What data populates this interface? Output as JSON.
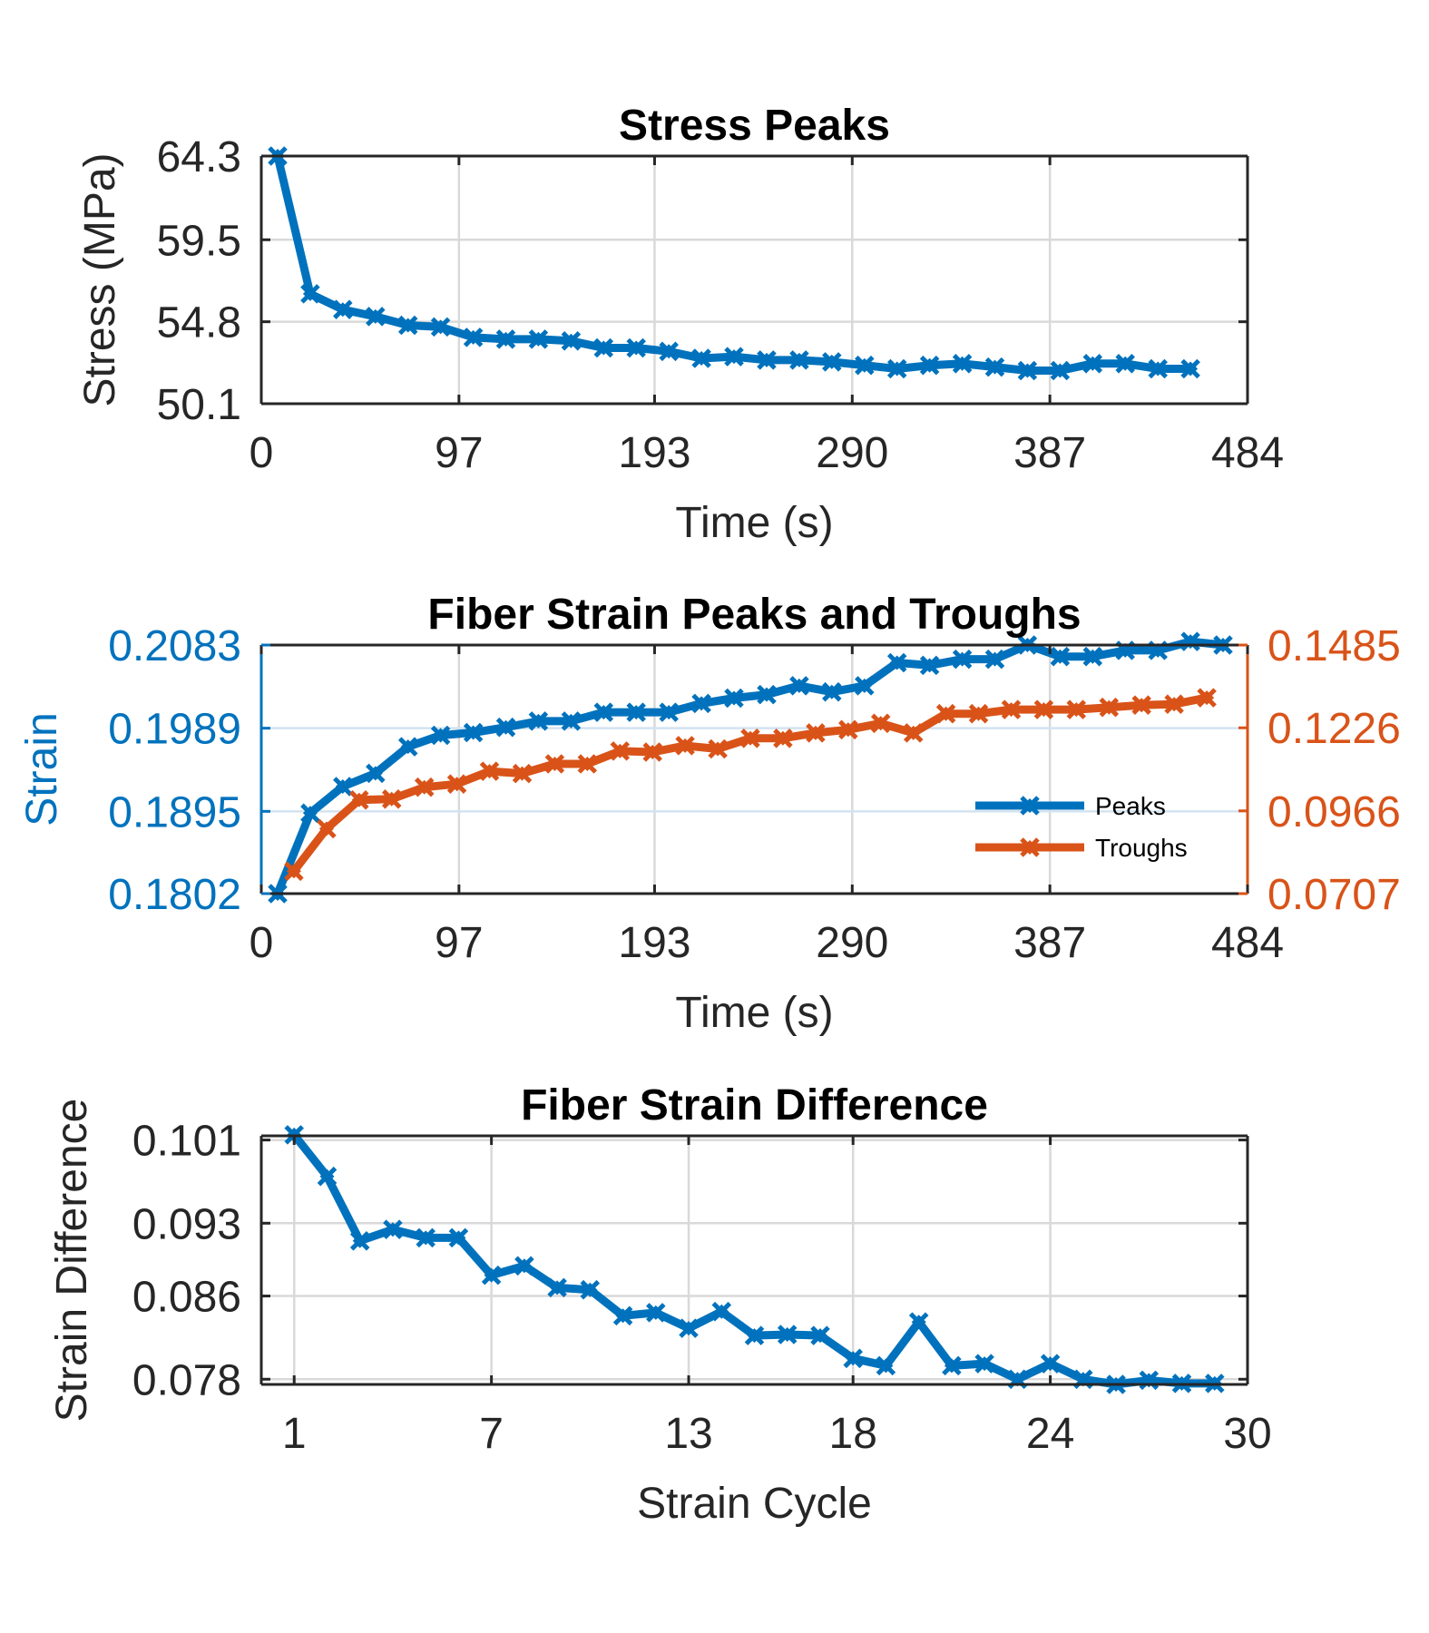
{
  "chart_data": [
    {
      "type": "line",
      "title": "Stress Peaks",
      "xlabel": "Time (s)",
      "ylabel": "Stress (MPa)",
      "xlim": [
        0,
        484
      ],
      "ylim": [
        50.1,
        64.3
      ],
      "xticks": [
        "0",
        "97",
        "193",
        "290",
        "387",
        "484"
      ],
      "yticks": [
        "50.1",
        "54.8",
        "59.5",
        "64.3"
      ],
      "grid": true,
      "series": [
        {
          "color": "#0072BD",
          "marker": "x-diamond",
          "x": [
            8,
            24,
            40,
            56,
            72,
            88,
            104,
            120,
            136,
            152,
            168,
            184,
            200,
            216,
            232,
            248,
            264,
            280,
            296,
            312,
            328,
            344,
            360,
            376,
            392,
            408,
            424,
            440,
            456
          ],
          "y": [
            64.3,
            56.4,
            55.5,
            55.1,
            54.6,
            54.5,
            53.9,
            53.8,
            53.8,
            53.7,
            53.3,
            53.3,
            53.1,
            52.7,
            52.8,
            52.6,
            52.6,
            52.5,
            52.3,
            52.1,
            52.3,
            52.4,
            52.2,
            52.0,
            52.0,
            52.4,
            52.4,
            52.1,
            52.1
          ]
        }
      ]
    },
    {
      "type": "line",
      "title": "Fiber Strain Peaks and Troughs",
      "xlabel": "Time (s)",
      "ylabel": "Strain",
      "xlim": [
        0,
        484
      ],
      "ylim": [
        0.1802,
        0.2083
      ],
      "y2lim": [
        0.0707,
        0.1485
      ],
      "xticks": [
        "0",
        "97",
        "193",
        "290",
        "387",
        "484"
      ],
      "yticks": [
        "0.1802",
        "0.1895",
        "0.1989",
        "0.2083"
      ],
      "y2ticks": [
        "0.0707",
        "0.0966",
        "0.1226",
        "0.1485"
      ],
      "grid": true,
      "legend": "lower-right",
      "series": [
        {
          "name": "Peaks",
          "axis": "left",
          "color": "#0072BD",
          "x": [
            8,
            24,
            40,
            56,
            72,
            88,
            104,
            120,
            136,
            152,
            168,
            184,
            200,
            216,
            232,
            248,
            264,
            280,
            296,
            312,
            328,
            344,
            360,
            376,
            392,
            408,
            424,
            440,
            456,
            472
          ],
          "y": [
            0.1802,
            0.1893,
            0.1923,
            0.1938,
            0.1968,
            0.1981,
            0.1984,
            0.199,
            0.1997,
            0.1997,
            0.2007,
            0.2007,
            0.2007,
            0.2017,
            0.2023,
            0.2027,
            0.2037,
            0.203,
            0.2037,
            0.2063,
            0.206,
            0.2067,
            0.2067,
            0.2083,
            0.207,
            0.207,
            0.2077,
            0.2077,
            0.2087,
            0.2083
          ]
        },
        {
          "name": "Troughs",
          "axis": "right",
          "color": "#D95319",
          "x": [
            16,
            32,
            48,
            64,
            80,
            96,
            112,
            128,
            144,
            160,
            176,
            192,
            208,
            224,
            240,
            256,
            272,
            288,
            304,
            320,
            336,
            352,
            368,
            384,
            400,
            416,
            432,
            448,
            464
          ],
          "y": [
            0.0777,
            0.091,
            0.1,
            0.1003,
            0.104,
            0.105,
            0.109,
            0.1083,
            0.1113,
            0.1113,
            0.1153,
            0.115,
            0.117,
            0.116,
            0.1193,
            0.1193,
            0.121,
            0.122,
            0.124,
            0.121,
            0.127,
            0.127,
            0.1283,
            0.1283,
            0.1283,
            0.129,
            0.1297,
            0.13,
            0.132
          ]
        }
      ]
    },
    {
      "type": "line",
      "title": "Fiber Strain Difference",
      "xlabel": "Strain Cycle",
      "ylabel": "Strain Difference",
      "xlim": [
        0,
        30
      ],
      "ylim": [
        0.0775,
        0.1014
      ],
      "xticks": [
        "1",
        "7",
        "13",
        "18",
        "24",
        "30"
      ],
      "xtick_values": [
        1,
        7,
        13,
        18,
        24,
        30
      ],
      "yticks": [
        "0.078",
        "0.086",
        "0.093",
        "0.101"
      ],
      "ytick_values": [
        0.078,
        0.086,
        0.093,
        0.101
      ],
      "grid": true,
      "series": [
        {
          "color": "#0072BD",
          "x": [
            1,
            2,
            3,
            4,
            5,
            6,
            7,
            8,
            9,
            10,
            11,
            12,
            13,
            14,
            15,
            16,
            17,
            18,
            19,
            20,
            21,
            22,
            23,
            24,
            25,
            26,
            27,
            28,
            29
          ],
          "y": [
            0.1015,
            0.0975,
            0.0913,
            0.0924,
            0.0916,
            0.0916,
            0.088,
            0.0889,
            0.0868,
            0.0866,
            0.0841,
            0.0844,
            0.0829,
            0.0845,
            0.0822,
            0.0823,
            0.0822,
            0.08,
            0.0793,
            0.0835,
            0.0793,
            0.0795,
            0.078,
            0.0795,
            0.078,
            0.0775,
            0.0779,
            0.0776,
            0.0776
          ]
        }
      ]
    }
  ],
  "legend": {
    "peaks_label": "Peaks",
    "troughs_label": "Troughs"
  }
}
